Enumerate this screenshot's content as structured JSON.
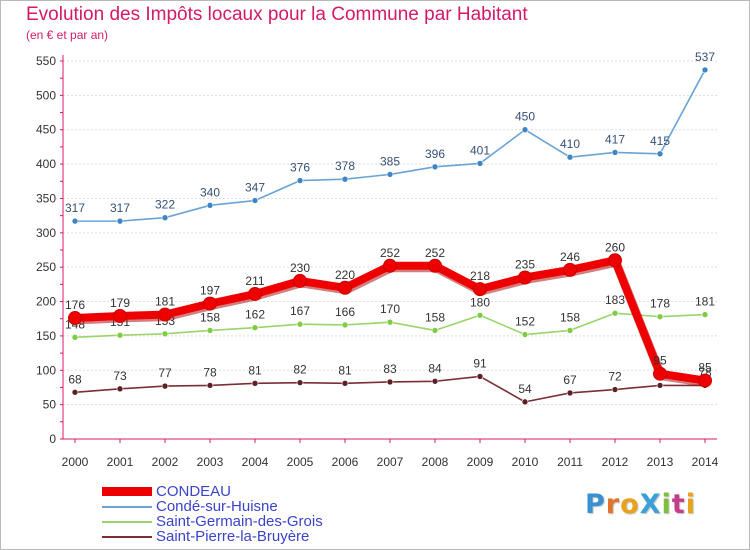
{
  "header": {
    "title": "Evolution des Impôts locaux pour la Commune par Habitant",
    "subtitle": "(en € et par an)"
  },
  "logo": {
    "text": "ProXiti",
    "letter_colors": [
      "#3a8fd0",
      "#e0742a",
      "#e8a21c",
      "#3aa0d8",
      "#7cbf3a",
      "#c43d8a",
      "#e8a21c"
    ]
  },
  "colors": {
    "title": "#d4196a",
    "axis": "#d4196a",
    "grid": "#dddddd",
    "label": "#333333",
    "legend_text": "#3b43c9"
  },
  "chart_data": {
    "type": "line",
    "title": "Evolution des Impôts locaux pour la Commune par Habitant",
    "subtitle": "(en € et par an)",
    "xlabel": "",
    "ylabel": "",
    "x": [
      "2000",
      "2001",
      "2002",
      "2003",
      "2004",
      "2005",
      "2006",
      "2007",
      "2008",
      "2009",
      "2010",
      "2011",
      "2012",
      "2013",
      "2014"
    ],
    "ylim": [
      0,
      550
    ],
    "yticks": [
      "0",
      "50",
      "100",
      "150",
      "200",
      "250",
      "300",
      "350",
      "400",
      "450",
      "500",
      "550"
    ],
    "grid": true,
    "legend_position": "bottom-left",
    "series": [
      {
        "name": "Condé-sur-Huisne",
        "color": "#6aa3d6",
        "marker": "#3d85c6",
        "values": [
          317,
          317,
          322,
          340,
          347,
          376,
          378,
          385,
          396,
          401,
          450,
          410,
          417,
          415,
          537
        ],
        "labels": [
          "317",
          "317",
          "322",
          "340",
          "347",
          "376",
          "378",
          "385",
          "396",
          "401",
          "450",
          "410",
          "417",
          "415",
          "537"
        ],
        "label_color": "#36507a"
      },
      {
        "name": "Saint-Germain-des-Grois",
        "color": "#9ad46a",
        "marker": "#7fcc44",
        "values": [
          148,
          151,
          153,
          158,
          162,
          167,
          166,
          170,
          158,
          180,
          152,
          158,
          183,
          178,
          181
        ],
        "labels": [
          "148",
          "151",
          "153",
          "158",
          "162",
          "167",
          "166",
          "170",
          "158",
          "180",
          "152",
          "158",
          "183",
          "178",
          "181"
        ],
        "label_color": "#333333"
      },
      {
        "name": "Saint-Pierre-la-Bruyère",
        "color": "#7a2f36",
        "marker": "#5c1f24",
        "values": [
          68,
          73,
          77,
          78,
          81,
          82,
          81,
          83,
          84,
          91,
          54,
          67,
          72,
          78,
          78
        ],
        "labels": [
          "68",
          "73",
          "77",
          "78",
          "81",
          "82",
          "81",
          "83",
          "84",
          "91",
          "54",
          "67",
          "72",
          "",
          "78"
        ],
        "label_color": "#333333"
      },
      {
        "name": "CONDEAU",
        "color": "#ee0000",
        "marker": "#ee0000",
        "values": [
          176,
          179,
          181,
          197,
          211,
          230,
          220,
          252,
          252,
          218,
          235,
          246,
          260,
          95,
          85
        ],
        "labels": [
          "176",
          "179",
          "181",
          "197",
          "211",
          "230",
          "220",
          "252",
          "252",
          "218",
          "235",
          "246",
          "260",
          "95",
          "85"
        ],
        "label_color": "#333333"
      }
    ]
  },
  "legend": {
    "items": [
      {
        "label": "CONDEAU",
        "color": "#ee0000",
        "thickness": 9
      },
      {
        "label": "Condé-sur-Huisne",
        "color": "#6aa3d6",
        "thickness": 2
      },
      {
        "label": "Saint-Germain-des-Grois",
        "color": "#9ad46a",
        "thickness": 2
      },
      {
        "label": "Saint-Pierre-la-Bruyère",
        "color": "#7a2f36",
        "thickness": 2
      }
    ]
  }
}
